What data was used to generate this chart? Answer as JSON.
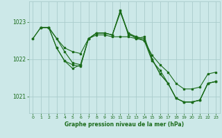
{
  "background_color": "#cce8e8",
  "grid_color": "#aacccc",
  "line_color": "#1a6b1a",
  "xlabel": "Graphe pression niveau de la mer (hPa)",
  "xlim": [
    -0.5,
    23.5
  ],
  "ylim": [
    1020.55,
    1023.55
  ],
  "yticks": [
    1021,
    1022,
    1023
  ],
  "xticks": [
    0,
    1,
    2,
    3,
    4,
    5,
    6,
    7,
    8,
    9,
    10,
    11,
    12,
    13,
    14,
    15,
    16,
    17,
    18,
    19,
    20,
    21,
    22,
    23
  ],
  "series": [
    {
      "x": [
        0,
        1,
        2,
        3,
        4,
        5,
        6,
        7,
        8,
        9,
        10,
        11,
        12,
        13,
        14,
        15,
        16,
        17,
        18,
        19,
        20,
        21,
        22,
        23
      ],
      "y": [
        1022.55,
        1022.85,
        1022.85,
        1022.55,
        1022.3,
        1022.2,
        1022.15,
        1022.55,
        1022.65,
        1022.65,
        1022.6,
        1022.6,
        1022.6,
        1022.55,
        1022.5,
        1022.1,
        1021.85,
        1021.65,
        1021.35,
        1021.2,
        1021.2,
        1021.25,
        1021.6,
        1021.65
      ]
    },
    {
      "x": [
        0,
        1,
        2,
        3,
        4,
        5,
        6,
        7,
        8,
        9,
        10,
        11,
        12,
        13,
        14,
        15,
        16,
        17,
        18,
        19,
        20,
        21,
        22,
        23
      ],
      "y": [
        1022.55,
        1022.85,
        1022.85,
        1022.55,
        1022.2,
        1021.9,
        1021.85,
        1022.55,
        1022.7,
        1022.7,
        1022.65,
        1023.25,
        1022.7,
        1022.55,
        1022.6,
        1022.0,
        1021.6,
        1021.35,
        1020.95,
        1020.85,
        1020.85,
        1020.9,
        1021.35,
        1021.4
      ]
    },
    {
      "x": [
        1,
        2,
        3,
        4,
        5,
        6,
        7,
        8,
        9,
        10,
        11,
        12,
        13,
        14,
        15,
        16,
        17,
        18,
        19,
        20,
        21,
        22,
        23
      ],
      "y": [
        1022.85,
        1022.85,
        1022.3,
        1021.95,
        1021.85,
        1021.8,
        1022.55,
        1022.7,
        1022.7,
        1022.65,
        1023.3,
        1022.7,
        1022.6,
        1022.55,
        1022.0,
        1021.6,
        1021.35,
        1020.95,
        1020.85,
        1020.85,
        1020.9,
        1021.35,
        1021.4
      ]
    },
    {
      "x": [
        1,
        2,
        3,
        4,
        5,
        6,
        7,
        8,
        9,
        10,
        11,
        12,
        13,
        14,
        15,
        16,
        17,
        18,
        19,
        20,
        21,
        22,
        23
      ],
      "y": [
        1022.85,
        1022.85,
        1022.3,
        1021.95,
        1021.75,
        1021.85,
        1022.55,
        1022.7,
        1022.7,
        1022.65,
        1023.3,
        1022.65,
        1022.6,
        1022.5,
        1021.95,
        1021.7,
        1021.35,
        1020.95,
        1020.85,
        1020.85,
        1020.9,
        1021.35,
        1021.4
      ]
    }
  ]
}
